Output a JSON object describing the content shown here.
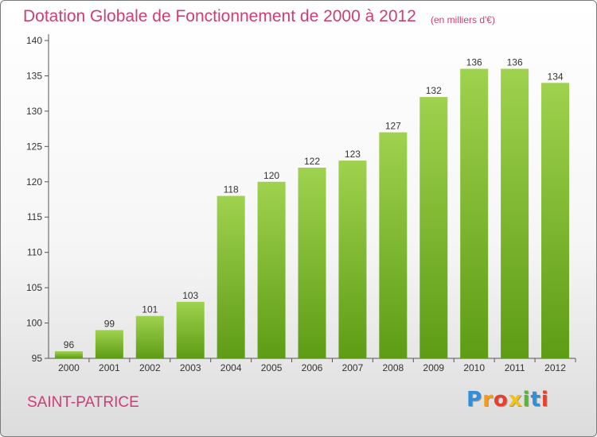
{
  "header": {
    "title": "Dotation Globale de Fonctionnement de 2000 à 2012",
    "unit": "(en milliers d'€)"
  },
  "footer": {
    "commune": "SAINT-PATRICE",
    "brand_letters": [
      "P",
      "r",
      "o",
      "x",
      "i",
      "t",
      "i"
    ],
    "brand_colors": [
      "#2f8fd8",
      "#f59a1b",
      "#e8402c",
      "#f3c21a",
      "#58b535",
      "#2f8fd8",
      "#e8402c"
    ]
  },
  "colors": {
    "bar_top": "#9fd24e",
    "bar_bottom": "#5e9c15",
    "text_pink": "#cf3d74"
  },
  "chart_data": {
    "type": "bar",
    "categories": [
      "2000",
      "2001",
      "2002",
      "2003",
      "2004",
      "2005",
      "2006",
      "2007",
      "2008",
      "2009",
      "2010",
      "2011",
      "2012"
    ],
    "values": [
      96,
      99,
      101,
      103,
      118,
      120,
      122,
      123,
      127,
      132,
      136,
      136,
      134
    ],
    "data_labels": [
      "96",
      "99",
      "101",
      "103",
      "118",
      "120",
      "122",
      "123",
      "127",
      "132",
      "136",
      "136",
      "134"
    ],
    "y_ticks": [
      95,
      100,
      105,
      110,
      115,
      120,
      125,
      130,
      135,
      140
    ],
    "ylim": [
      95,
      140
    ],
    "grid": false
  }
}
